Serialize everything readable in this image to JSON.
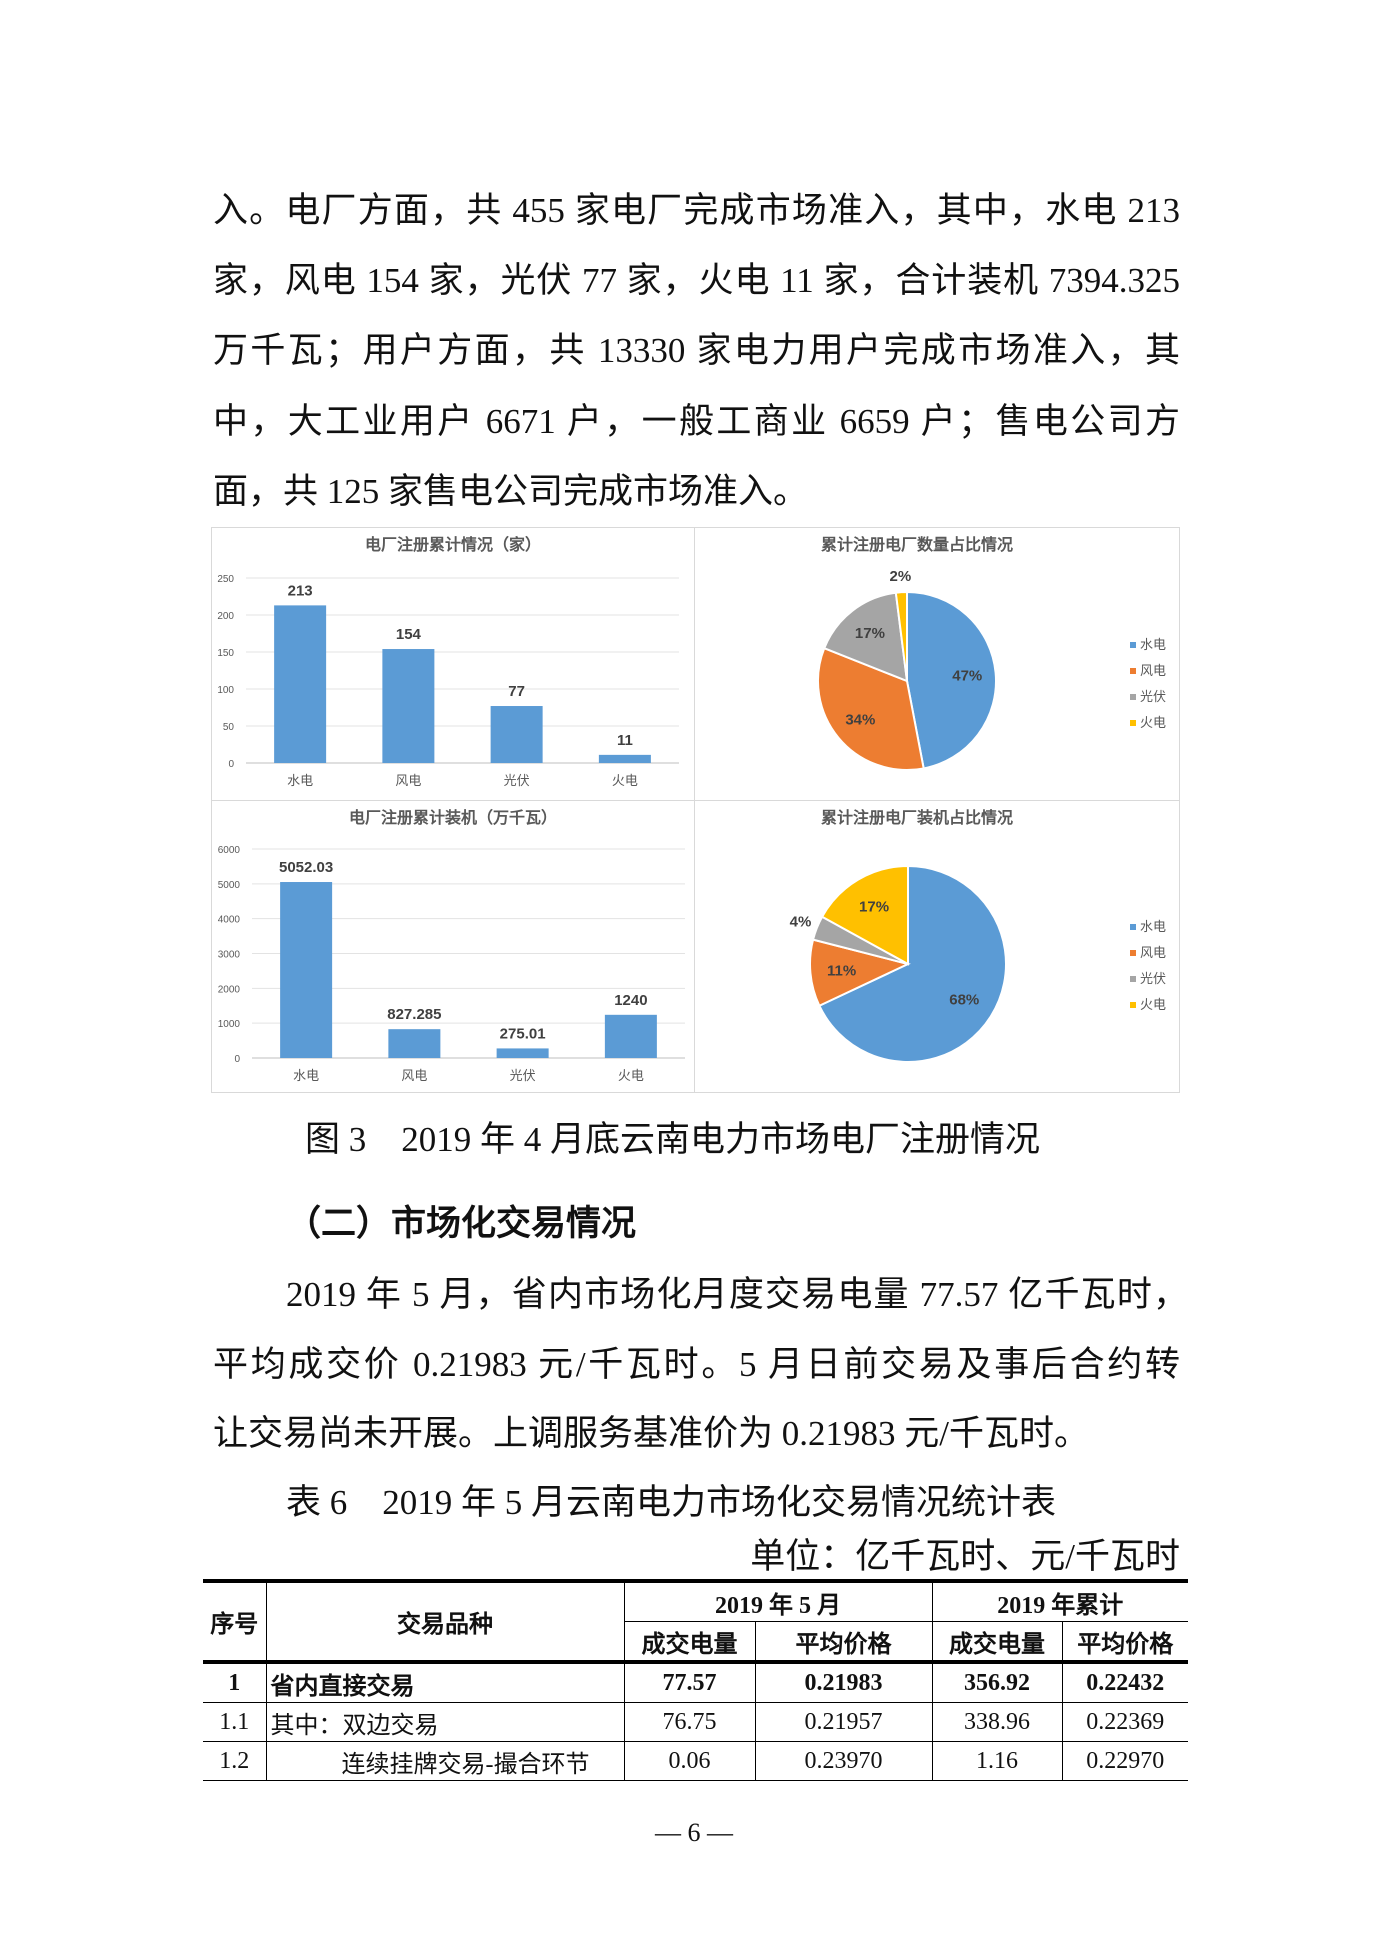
{
  "paragraph1": [
    "入。电厂方面，共 455 家电厂完成市场准入，其中，水电 213",
    "家，风电 154 家，光伏 77 家，火电 11 家，合计装机 7394.325",
    "万千瓦；用户方面，共 13330 家电力用户完成市场准入，其",
    "中，大工业用户 6671 户，一般工商业 6659 户；售电公司方",
    "面，共 125 家售电公司完成市场准入。"
  ],
  "chart_data": [
    {
      "type": "bar",
      "title": "电厂注册累计情况（家）",
      "categories": [
        "水电",
        "风电",
        "光伏",
        "火电"
      ],
      "values": [
        213,
        154,
        77,
        11
      ],
      "data_labels": [
        "213",
        "154",
        "77",
        "11"
      ],
      "ylim": [
        0,
        250
      ],
      "yticks": [
        0,
        50,
        100,
        150,
        200,
        250
      ],
      "grid": true,
      "color": "#5b9bd5"
    },
    {
      "type": "pie",
      "title": "累计注册电厂数量占比情况",
      "categories": [
        "水电",
        "风电",
        "光伏",
        "火电"
      ],
      "values": [
        47,
        34,
        17,
        2
      ],
      "data_labels": [
        "47%",
        "34%",
        "17%",
        "2%"
      ],
      "colors": [
        "#5b9bd5",
        "#ed7d31",
        "#a5a5a5",
        "#ffc000"
      ],
      "legend": "right"
    },
    {
      "type": "bar",
      "title": "电厂注册累计装机（万千瓦）",
      "categories": [
        "水电",
        "风电",
        "光伏",
        "火电"
      ],
      "values": [
        5052.03,
        827.285,
        275.01,
        1240
      ],
      "data_labels": [
        "5052.03",
        "827.285",
        "275.01",
        "1240"
      ],
      "ylim": [
        0,
        6000
      ],
      "yticks": [
        0,
        1000,
        2000,
        3000,
        4000,
        5000,
        6000
      ],
      "grid": true,
      "color": "#5b9bd5"
    },
    {
      "type": "pie",
      "title": "累计注册电厂装机占比情况",
      "categories": [
        "水电",
        "风电",
        "光伏",
        "火电"
      ],
      "values": [
        68,
        11,
        4,
        17
      ],
      "data_labels": [
        "68%",
        "11%",
        "4%",
        "17%"
      ],
      "colors": [
        "#5b9bd5",
        "#ed7d31",
        "#a5a5a5",
        "#ffc000"
      ],
      "legend": "right"
    }
  ],
  "figure_caption": "图 3　2019 年 4 月底云南电力市场电厂注册情况",
  "section_heading": "（二）市场化交易情况",
  "paragraph2": [
    "2019 年 5 月，省内市场化月度交易电量 77.57 亿千瓦时，",
    "平均成交价 0.21983 元/千瓦时。5 月日前交易及事后合约转",
    "让交易尚未开展。上调服务基准价为 0.21983 元/千瓦时。"
  ],
  "table": {
    "title": "表 6　2019 年 5 月云南电力市场化交易情况统计表",
    "unit": "单位：亿千瓦时、元/千瓦时",
    "headers": {
      "seq": "序号",
      "type": "交易品种",
      "group1": "2019 年 5 月",
      "group2": "2019 年累计",
      "volume": "成交电量",
      "price": "平均价格"
    },
    "rows": [
      {
        "seq": "1",
        "name": "省内直接交易",
        "m_vol": "77.57",
        "m_price": "0.21983",
        "y_vol": "356.92",
        "y_price": "0.22432"
      },
      {
        "seq": "1.1",
        "name": "其中：双边交易",
        "m_vol": "76.75",
        "m_price": "0.21957",
        "y_vol": "338.96",
        "y_price": "0.22369"
      },
      {
        "seq": "1.2",
        "name": "连续挂牌交易-撮合环节",
        "m_vol": "0.06",
        "m_price": "0.23970",
        "y_vol": "1.16",
        "y_price": "0.22970"
      }
    ]
  },
  "page_number": "— 6 —"
}
